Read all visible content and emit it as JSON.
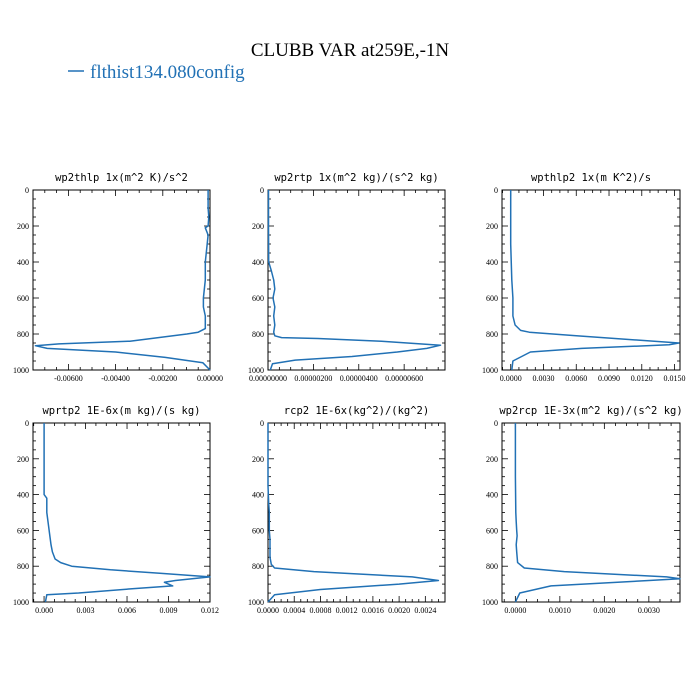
{
  "figure": {
    "title": "CLUBB VAR at259E,-1N",
    "legend": "flthist134.080config",
    "line_color": "#2171b5"
  },
  "chart_data": [
    {
      "type": "line",
      "title": "wp2thlp   1x(m^2 K)/s^2",
      "xlim": [
        -0.0075,
        0.0
      ],
      "ylim": [
        1000,
        0
      ],
      "yticks": [
        0,
        200,
        400,
        600,
        800,
        1000
      ],
      "xticks": [
        -0.006,
        -0.004,
        -0.002,
        0.0
      ],
      "xtick_labels": [
        "-0.00600",
        "-0.00400",
        "-0.00200",
        "0.00000"
      ],
      "series": [
        {
          "x": [
            -8e-05,
            -8e-05,
            -5e-05,
            -8e-05,
            -0.0002,
            -8e-05,
            -0.00012,
            -0.0002,
            -0.0002,
            -0.0002,
            -0.00028,
            -0.00028,
            -0.0002,
            -0.0002,
            -0.0005,
            -0.00098,
            -0.0034,
            -0.0064,
            -0.0074,
            -0.0069,
            -0.004,
            -0.0019,
            -0.0003,
            0.0
          ],
          "y": [
            0,
            100,
            150,
            200,
            210,
            250,
            300,
            400,
            430,
            500,
            600,
            650,
            700,
            770,
            790,
            800,
            840,
            855,
            865,
            880,
            900,
            930,
            960,
            1000
          ]
        }
      ]
    },
    {
      "type": "line",
      "title": "wp2rtp   1x(m^2 kg)/(s^2 kg)",
      "xlim": [
        0.0,
        7.8e-06
      ],
      "ylim": [
        1000,
        0
      ],
      "yticks": [
        0,
        200,
        400,
        600,
        800,
        1000
      ],
      "xticks": [
        0.0,
        2e-06,
        4e-06,
        6e-06
      ],
      "xtick_labels": [
        "0.00000000",
        "0.00000200",
        "0.00000400",
        "0.00000600"
      ],
      "series": [
        {
          "x": [
            2e-08,
            2e-08,
            3e-08,
            1.5e-07,
            2.5e-07,
            3e-07,
            2.2e-07,
            3e-07,
            2.5e-07,
            3e-07,
            2.5e-07,
            3e-07,
            6e-07,
            2.2e-06,
            5e-06,
            7.6e-06,
            7e-06,
            5.7e-06,
            3.7e-06,
            1.2e-06,
            2e-07,
            1e-07
          ],
          "y": [
            0,
            200,
            400,
            450,
            500,
            550,
            600,
            650,
            700,
            750,
            790,
            810,
            820,
            825,
            840,
            862,
            880,
            900,
            925,
            945,
            965,
            1000
          ]
        }
      ]
    },
    {
      "type": "line",
      "title": "wpthlp2   1x(m K^2)/s",
      "xlim": [
        -0.0008,
        0.0155
      ],
      "ylim": [
        1000,
        0
      ],
      "yticks": [
        0,
        200,
        400,
        600,
        800,
        1000
      ],
      "xticks": [
        0.0,
        0.003,
        0.006,
        0.009,
        0.012,
        0.015
      ],
      "xtick_labels": [
        "0.0000",
        "0.0030",
        "0.0060",
        "0.0090",
        "0.0120",
        "0.0150"
      ],
      "series": [
        {
          "x": [
            0.0,
            0.0,
            0.0001,
            0.0002,
            0.0002,
            0.0004,
            0.0009,
            0.0017,
            0.006,
            0.0154,
            0.0145,
            0.0065,
            0.0018,
            0.0002,
            0.0001
          ],
          "y": [
            0,
            300,
            500,
            600,
            700,
            750,
            780,
            790,
            810,
            850,
            860,
            880,
            900,
            950,
            1000
          ]
        }
      ]
    },
    {
      "type": "line",
      "title": "wprtp2   1E-6x(m kg)/(s kg)",
      "xlim": [
        -0.0008,
        0.012
      ],
      "ylim": [
        1000,
        0
      ],
      "yticks": [
        0,
        200,
        400,
        600,
        800,
        1000
      ],
      "xticks": [
        0.0,
        0.003,
        0.006,
        0.009,
        0.012
      ],
      "xtick_labels": [
        "0.000",
        "0.003",
        "0.006",
        "0.009",
        "0.012"
      ],
      "series": [
        {
          "x": [
            0.0,
            0.0,
            0.0,
            0.0002,
            0.0002,
            0.0003,
            0.0004,
            0.0005,
            0.0006,
            0.0008,
            0.0012,
            0.002,
            0.0048,
            0.0085,
            0.012,
            0.0095,
            0.0087,
            0.0093,
            0.0065,
            0.0025,
            0.0002,
            0.0001
          ],
          "y": [
            0,
            200,
            400,
            420,
            500,
            560,
            620,
            680,
            720,
            760,
            780,
            800,
            820,
            840,
            860,
            880,
            890,
            910,
            925,
            950,
            960,
            1000
          ]
        }
      ]
    },
    {
      "type": "line",
      "title": "rcp2   1E-6x(kg^2)/(kg^2)",
      "xlim": [
        0.0,
        0.0027
      ],
      "ylim": [
        1000,
        0
      ],
      "yticks": [
        0,
        200,
        400,
        600,
        800,
        1000
      ],
      "xticks": [
        0.0,
        0.0004,
        0.0008,
        0.0012,
        0.0016,
        0.002,
        0.0024
      ],
      "xtick_labels": [
        "0.0000",
        "0.0004",
        "0.0008",
        "0.0012",
        "0.0016",
        "0.0020",
        "0.0024"
      ],
      "series": [
        {
          "x": [
            0.0,
            0.0,
            1e-05,
            2e-05,
            2e-05,
            3e-05,
            3e-05,
            5e-05,
            0.0001,
            0.0007,
            0.0022,
            0.0026,
            0.002,
            0.0008,
            0.0001,
            0.0
          ],
          "y": [
            0,
            350,
            450,
            500,
            600,
            650,
            750,
            790,
            810,
            830,
            860,
            880,
            900,
            930,
            960,
            1000
          ]
        }
      ]
    },
    {
      "type": "line",
      "title": "wp2rcp   1E-3x(m^2 kg)/(s^2 kg)",
      "xlim": [
        -0.0003,
        0.0037
      ],
      "ylim": [
        1000,
        0
      ],
      "yticks": [
        0,
        200,
        400,
        600,
        800,
        1000
      ],
      "xticks": [
        0.0,
        0.001,
        0.002,
        0.003
      ],
      "xtick_labels": [
        "0.0000",
        "0.0010",
        "0.0020",
        "0.0030"
      ],
      "series": [
        {
          "x": [
            0.0,
            0.0,
            1e-05,
            2e-05,
            3e-05,
            4e-05,
            2e-05,
            3e-05,
            5e-05,
            0.0002,
            0.0011,
            0.0034,
            0.0037,
            0.003,
            0.0008,
            0.0001,
            0.0
          ],
          "y": [
            0,
            300,
            500,
            550,
            600,
            630,
            680,
            720,
            780,
            810,
            830,
            860,
            870,
            880,
            910,
            950,
            1000
          ]
        }
      ]
    }
  ]
}
